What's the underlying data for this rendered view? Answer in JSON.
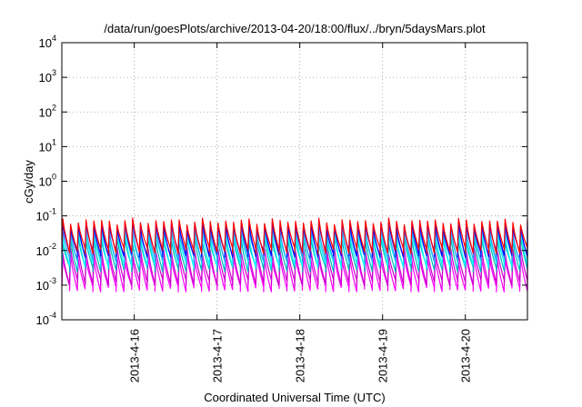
{
  "chart_data": {
    "type": "line",
    "title": "/data/run/goesPlots/archive/2013-04-20/18:00/flux/../bryn/5daysMars.plot",
    "xlabel": "Coordinated Universal Time (UTC)",
    "ylabel": "cGy/day",
    "yscale": "log",
    "ylim": [
      0.0001,
      10000
    ],
    "yticks": [
      {
        "base": "10",
        "exp": "4",
        "value": 10000
      },
      {
        "base": "10",
        "exp": "3",
        "value": 1000
      },
      {
        "base": "10",
        "exp": "2",
        "value": 100
      },
      {
        "base": "10",
        "exp": "1",
        "value": 10
      },
      {
        "base": "10",
        "exp": "0",
        "value": 1
      },
      {
        "base": "10",
        "exp": "-1",
        "value": 0.1
      },
      {
        "base": "10",
        "exp": "-2",
        "value": 0.01
      },
      {
        "base": "10",
        "exp": "-3",
        "value": 0.001
      },
      {
        "base": "10",
        "exp": "-4",
        "value": 0.0001
      }
    ],
    "xlim": [
      "2013-04-15T03:00",
      "2013-04-20T18:00"
    ],
    "xticks": [
      {
        "label": "2013-4-16",
        "date": "2013-04-16T00:00"
      },
      {
        "label": "2013-4-17",
        "date": "2013-04-17T00:00"
      },
      {
        "label": "2013-4-18",
        "date": "2013-04-18T00:00"
      },
      {
        "label": "2013-4-19",
        "date": "2013-04-19T00:00"
      },
      {
        "label": "2013-4-20",
        "date": "2013-04-20T00:00"
      }
    ],
    "grid": true,
    "period_hours": 2.25,
    "series": [
      {
        "color": "#ff00ff",
        "peak": 0.006,
        "trough": 0.0008
      },
      {
        "color": "#cc00cc",
        "peak": 0.01,
        "trough": 0.0012
      },
      {
        "color": "#00b8b8",
        "peak": 0.02,
        "trough": 0.003
      },
      {
        "color": "#00ffff",
        "peak": 0.03,
        "trough": 0.004
      },
      {
        "color": "#3399ff",
        "peak": 0.04,
        "trough": 0.006
      },
      {
        "color": "#0000ff",
        "peak": 0.055,
        "trough": 0.008
      },
      {
        "color": "#ff0000",
        "peak": 0.07,
        "trough": 0.01
      }
    ]
  }
}
